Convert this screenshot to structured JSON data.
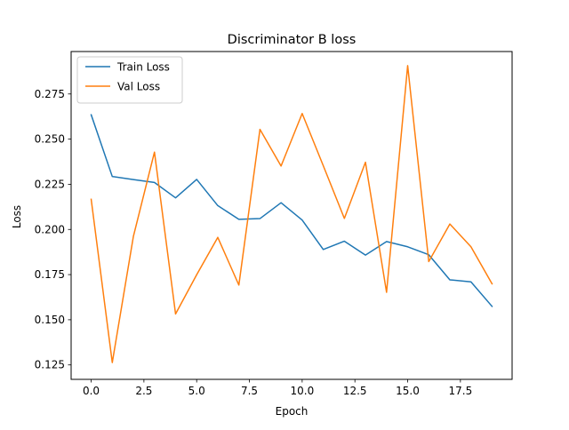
{
  "chart_data": {
    "type": "line",
    "title": "Discriminator B loss",
    "xlabel": "Epoch",
    "ylabel": "Loss",
    "xlim": [
      -0.95,
      19.95
    ],
    "ylim": [
      0.117,
      0.2985
    ],
    "xticks": [
      0,
      2.5,
      5,
      7.5,
      10,
      12.5,
      15,
      17.5
    ],
    "xtick_labels": [
      "0.0",
      "2.5",
      "5.0",
      "7.5",
      "10.0",
      "12.5",
      "15.0",
      "17.5"
    ],
    "yticks": [
      0.125,
      0.15,
      0.175,
      0.2,
      0.225,
      0.25,
      0.275
    ],
    "ytick_labels": [
      "0.125",
      "0.150",
      "0.175",
      "0.200",
      "0.225",
      "0.250",
      "0.275"
    ],
    "x": [
      0,
      1,
      2,
      3,
      4,
      5,
      6,
      7,
      8,
      9,
      10,
      11,
      12,
      13,
      14,
      15,
      16,
      17,
      18,
      19
    ],
    "series": [
      {
        "name": "Train Loss",
        "color": "#1f77b4",
        "values": [
          0.2635,
          0.2293,
          0.2276,
          0.226,
          0.2175,
          0.2277,
          0.2132,
          0.2056,
          0.206,
          0.2148,
          0.2052,
          0.1889,
          0.1935,
          0.1858,
          0.1933,
          0.1904,
          0.186,
          0.1721,
          0.171,
          0.1574
        ]
      },
      {
        "name": "Val Loss",
        "color": "#ff7f0e",
        "values": [
          0.2167,
          0.1263,
          0.1961,
          0.2428,
          0.1532,
          0.1749,
          0.1956,
          0.1692,
          0.2554,
          0.2351,
          0.2642,
          0.2353,
          0.2061,
          0.2372,
          0.1652,
          0.2907,
          0.1822,
          0.203,
          0.1904,
          0.1699
        ]
      }
    ],
    "grid": false,
    "legend_position": "top-left"
  }
}
